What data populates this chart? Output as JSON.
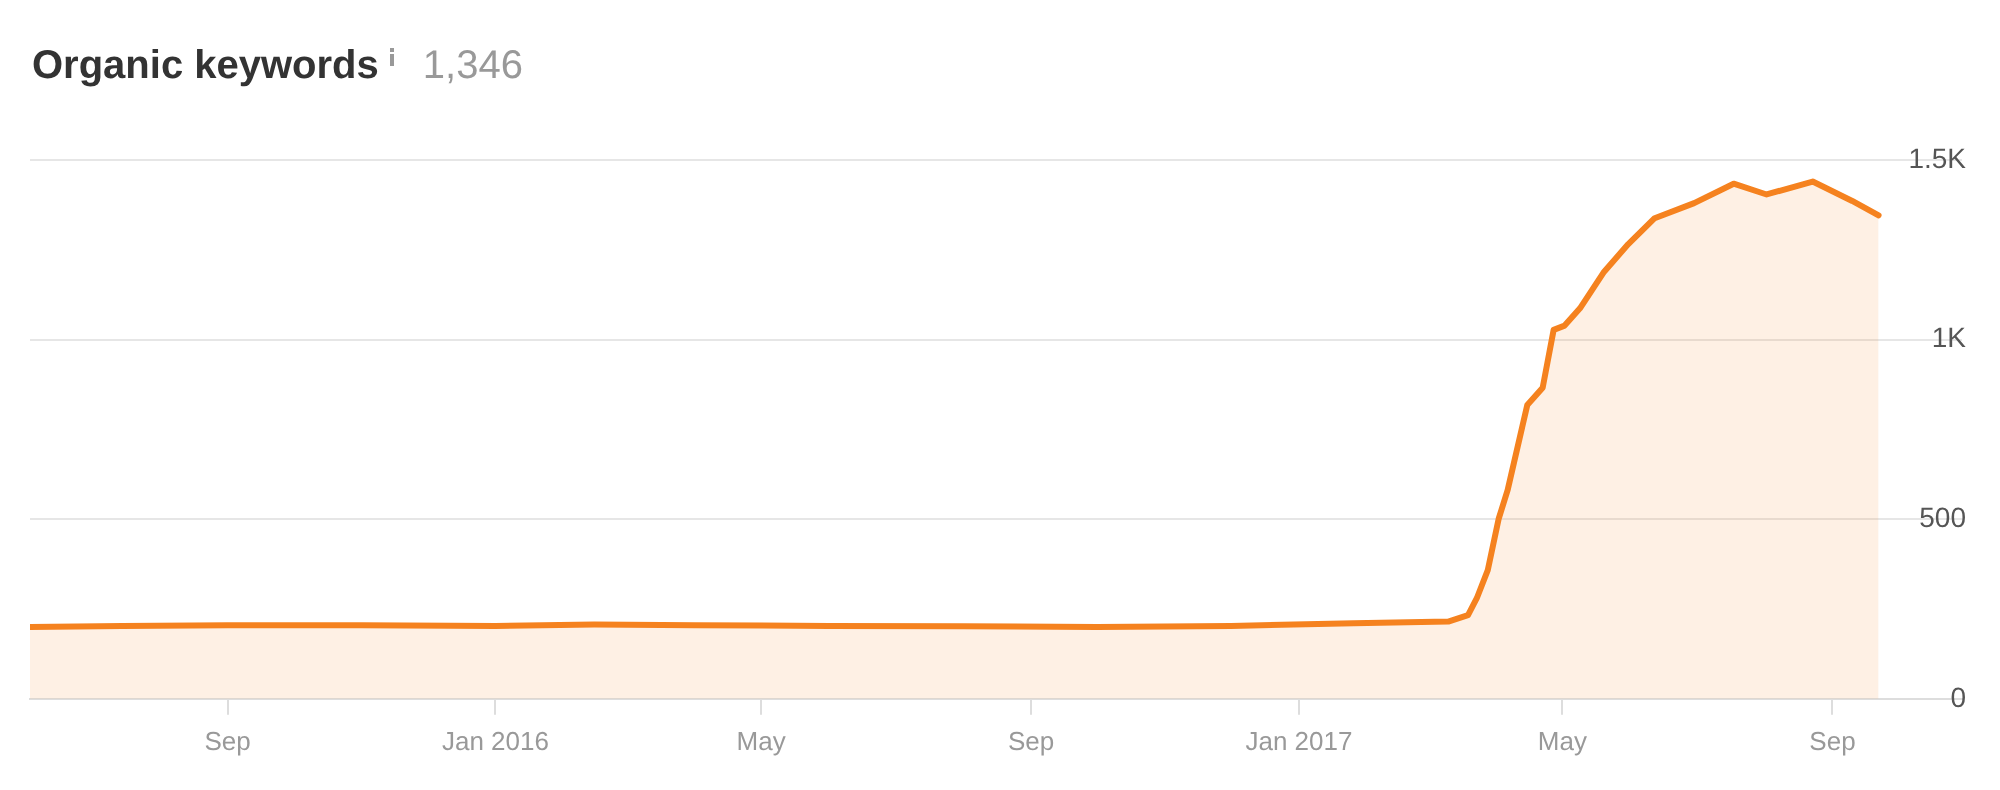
{
  "chart_data": {
    "type": "area",
    "title": "Organic keywords",
    "subtitle": "1,346",
    "x": [
      "2015-06-03",
      "2015-07-15",
      "2015-09-01",
      "2015-11-01",
      "2016-01-01",
      "2016-02-15",
      "2016-04-01",
      "2016-06-01",
      "2016-08-01",
      "2016-10-01",
      "2016-12-01",
      "2017-01-26",
      "2017-03-10",
      "2017-03-19",
      "2017-03-23",
      "2017-03-28",
      "2017-04-02",
      "2017-04-06",
      "2017-04-15",
      "2017-04-22",
      "2017-04-27",
      "2017-05-02",
      "2017-05-09",
      "2017-05-20",
      "2017-05-31",
      "2017-06-12",
      "2017-06-30",
      "2017-07-18",
      "2017-08-02",
      "2017-08-23",
      "2017-09-10",
      "2017-09-22"
    ],
    "series": [
      {
        "color": "#f5821f",
        "values": [
          200,
          203,
          205,
          205,
          203,
          207,
          205,
          203,
          202,
          200,
          203,
          210,
          215,
          233,
          280,
          358,
          502,
          580,
          818,
          866,
          1027,
          1039,
          1087,
          1189,
          1266,
          1338,
          1380,
          1434,
          1404,
          1440,
          1386,
          1346
        ]
      }
    ],
    "xlim": [
      "2015-06-03",
      "2017-10-30"
    ],
    "xticks": [
      {
        "value": "2015-09-01",
        "label": "Sep"
      },
      {
        "value": "2016-01-01",
        "label": "Jan 2016"
      },
      {
        "value": "2016-05-01",
        "label": "May"
      },
      {
        "value": "2016-09-01",
        "label": "Sep"
      },
      {
        "value": "2017-01-01",
        "label": "Jan 2017"
      },
      {
        "value": "2017-05-01",
        "label": "May"
      },
      {
        "value": "2017-09-01",
        "label": "Sep"
      }
    ],
    "ylim": [
      0,
      1500
    ],
    "yticks": [
      0,
      500,
      {
        "value": 1000,
        "label": "1K"
      },
      {
        "value": 1500,
        "label": "1.5K"
      }
    ],
    "grid": "y",
    "legend": false,
    "marker": "none",
    "line_style": "solid"
  }
}
